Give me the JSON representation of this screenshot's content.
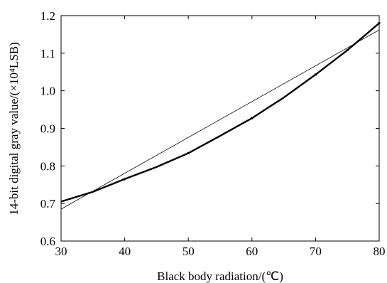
{
  "chart_data": {
    "type": "line",
    "xlabel": "Black body radiation/(℃)",
    "ylabel": "14-bit digital gray value/(×10⁴LSB)",
    "xlim": [
      30,
      80
    ],
    "ylim": [
      0.6,
      1.2
    ],
    "xticks": [
      "30",
      "40",
      "50",
      "60",
      "70",
      "80"
    ],
    "yticks": [
      "0.6",
      "0.7",
      "0.8",
      "0.9",
      "1.0",
      "1.1",
      "1.2"
    ],
    "grid": false,
    "series": [
      {
        "style": "thick-curve",
        "x": [
          30,
          35,
          40,
          45,
          50,
          55,
          60,
          65,
          70,
          75,
          80
        ],
        "y": [
          0.705,
          0.731,
          0.765,
          0.797,
          0.834,
          0.88,
          0.927,
          0.982,
          1.043,
          1.108,
          1.18
        ]
      },
      {
        "style": "thin-linear",
        "x": [
          30,
          80
        ],
        "y": [
          0.685,
          1.162
        ]
      }
    ],
    "markers": {
      "x": [
        40,
        50,
        60,
        70,
        75,
        80
      ],
      "y": [
        0.765,
        0.834,
        0.927,
        1.043,
        1.108,
        1.18
      ]
    }
  }
}
